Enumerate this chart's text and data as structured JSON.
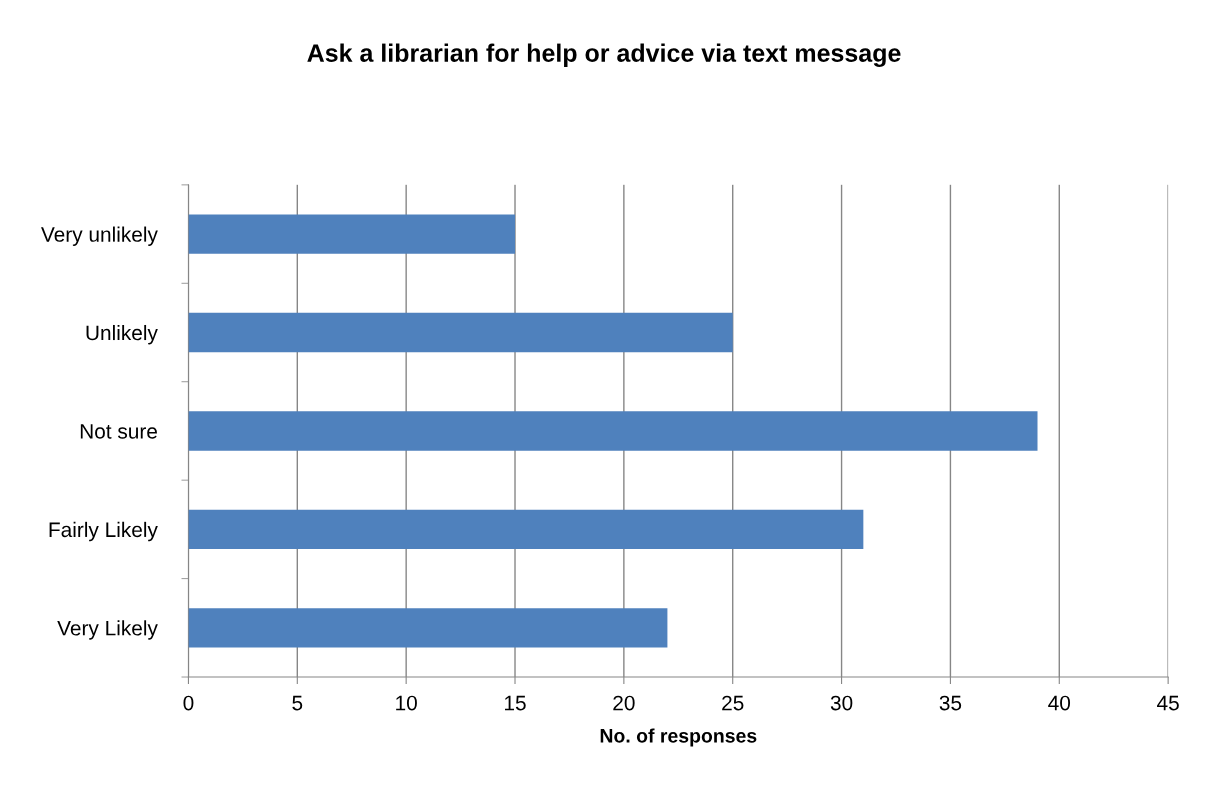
{
  "chart_data": {
    "type": "bar",
    "orientation": "horizontal",
    "title": "Ask a librarian for help or advice via text message",
    "xlabel": "No. of responses",
    "categories": [
      "Very unlikely",
      "Unlikely",
      "Not sure",
      "Fairly Likely",
      "Very Likely"
    ],
    "values": [
      15,
      25,
      39,
      31,
      22
    ],
    "color": "#4f81bd",
    "xlim": [
      0,
      45
    ],
    "xticks": [
      0,
      5,
      10,
      15,
      20,
      25,
      30,
      35,
      40,
      45
    ],
    "grid": "x",
    "legend": false
  }
}
